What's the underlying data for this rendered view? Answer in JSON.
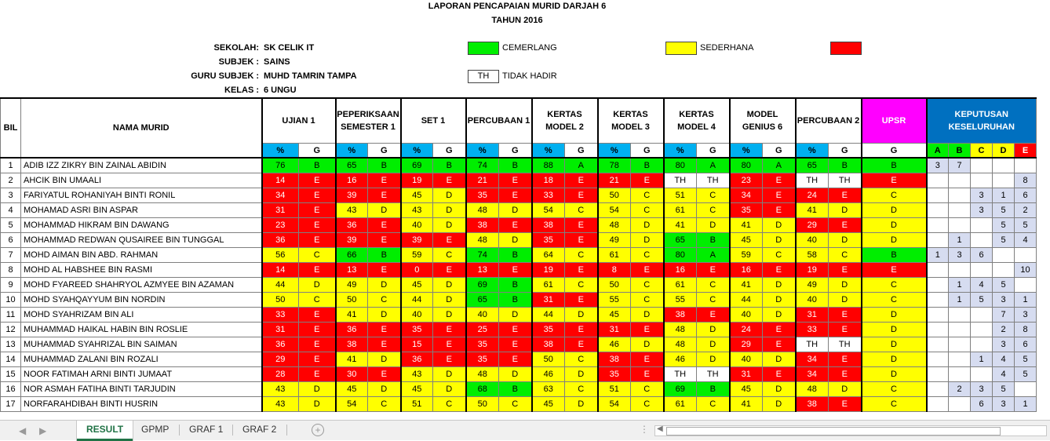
{
  "report": {
    "title": "LAPORAN PENCAPAIAN MURID DARJAH 6",
    "year": "TAHUN 2016",
    "info": [
      {
        "label": "SEKOLAH:",
        "value": "SK CELIK IT"
      },
      {
        "label": "SUBJEK :",
        "value": "SAINS"
      },
      {
        "label": "GURU SUBJEK :",
        "value": "MUHD TAMRIN TAMPA"
      },
      {
        "label": "KELAS :",
        "value": "6 UNGU"
      }
    ],
    "legend": {
      "cemerlang": "CEMERLANG",
      "sederhana": "SEDERHANA",
      "th_code": "TH",
      "th_label": "TIDAK HADIR",
      "colors": {
        "cemerlang": "#00ee00",
        "sederhana": "#ffff00",
        "lemah": "#ff0000"
      }
    }
  },
  "table": {
    "col_bil": "BIL",
    "col_name": "NAMA MURID",
    "exams": [
      "UJIAN 1",
      "PEPERIKSAAN SEMESTER 1",
      "SET 1",
      "PERCUBAAN 1",
      "KERTAS MODEL 2",
      "KERTAS MODEL 3",
      "KERTAS MODEL 4",
      "MODEL GENIUS 6",
      "PERCUBAAN 2"
    ],
    "pct_label": "%",
    "g_label": "G",
    "upsr": "UPSR",
    "keputusan": "KEPUTUSAN KESELURUHAN",
    "grades": [
      "A",
      "B",
      "C",
      "D",
      "E"
    ],
    "rows": [
      {
        "bil": "1",
        "name": "ADIB IZZ ZIKRY BIN ZAINAL ABIDIN",
        "marks": [
          [
            "76",
            "B"
          ],
          [
            "65",
            "B"
          ],
          [
            "69",
            "B"
          ],
          [
            "74",
            "B"
          ],
          [
            "88",
            "A"
          ],
          [
            "78",
            "B"
          ],
          [
            "80",
            "A"
          ],
          [
            "80",
            "A"
          ],
          [
            "65",
            "B"
          ]
        ],
        "upsr": "B",
        "k": [
          "3",
          "7",
          "",
          "",
          ""
        ]
      },
      {
        "bil": "2",
        "name": "AHCIK BIN UMAALI",
        "marks": [
          [
            "14",
            "E"
          ],
          [
            "16",
            "E"
          ],
          [
            "19",
            "E"
          ],
          [
            "21",
            "E"
          ],
          [
            "18",
            "E"
          ],
          [
            "21",
            "E"
          ],
          [
            "TH",
            "TH"
          ],
          [
            "23",
            "E"
          ],
          [
            "TH",
            "TH"
          ]
        ],
        "upsr": "E",
        "k": [
          "",
          "",
          "",
          "",
          "8"
        ]
      },
      {
        "bil": "3",
        "name": "FARIYATUL ROHANIYAH BINTI RONIL",
        "marks": [
          [
            "34",
            "E"
          ],
          [
            "39",
            "E"
          ],
          [
            "45",
            "D"
          ],
          [
            "35",
            "E"
          ],
          [
            "33",
            "E"
          ],
          [
            "50",
            "C"
          ],
          [
            "51",
            "C"
          ],
          [
            "34",
            "E"
          ],
          [
            "24",
            "E"
          ]
        ],
        "upsr": "C",
        "k": [
          "",
          "",
          "3",
          "1",
          "6"
        ]
      },
      {
        "bil": "4",
        "name": "MOHAMAD ASRI BIN ASPAR",
        "marks": [
          [
            "31",
            "E"
          ],
          [
            "43",
            "D"
          ],
          [
            "43",
            "D"
          ],
          [
            "48",
            "D"
          ],
          [
            "54",
            "C"
          ],
          [
            "54",
            "C"
          ],
          [
            "61",
            "C"
          ],
          [
            "35",
            "E"
          ],
          [
            "41",
            "D"
          ]
        ],
        "upsr": "D",
        "k": [
          "",
          "",
          "3",
          "5",
          "2"
        ]
      },
      {
        "bil": "5",
        "name": "MOHAMMAD HIKRAM BIN DAWANG",
        "marks": [
          [
            "23",
            "E"
          ],
          [
            "36",
            "E"
          ],
          [
            "40",
            "D"
          ],
          [
            "38",
            "E"
          ],
          [
            "38",
            "E"
          ],
          [
            "48",
            "D"
          ],
          [
            "41",
            "D"
          ],
          [
            "41",
            "D"
          ],
          [
            "29",
            "E"
          ]
        ],
        "upsr": "D",
        "k": [
          "",
          "",
          "",
          "5",
          "5"
        ]
      },
      {
        "bil": "6",
        "name": "MOHAMMAD REDWAN QUSAIREE BIN TUNGGAL",
        "marks": [
          [
            "36",
            "E"
          ],
          [
            "39",
            "E"
          ],
          [
            "39",
            "E"
          ],
          [
            "48",
            "D"
          ],
          [
            "35",
            "E"
          ],
          [
            "49",
            "D"
          ],
          [
            "65",
            "B"
          ],
          [
            "45",
            "D"
          ],
          [
            "40",
            "D"
          ]
        ],
        "upsr": "D",
        "k": [
          "",
          "1",
          "",
          "5",
          "4"
        ]
      },
      {
        "bil": "7",
        "name": "MOHD AIMAN BIN ABD. RAHMAN",
        "marks": [
          [
            "56",
            "C"
          ],
          [
            "66",
            "B"
          ],
          [
            "59",
            "C"
          ],
          [
            "74",
            "B"
          ],
          [
            "64",
            "C"
          ],
          [
            "61",
            "C"
          ],
          [
            "80",
            "A"
          ],
          [
            "59",
            "C"
          ],
          [
            "58",
            "C"
          ]
        ],
        "upsr": "B",
        "k": [
          "1",
          "3",
          "6",
          "",
          ""
        ]
      },
      {
        "bil": "8",
        "name": "MOHD AL HABSHEE BIN RASMI",
        "marks": [
          [
            "14",
            "E"
          ],
          [
            "13",
            "E"
          ],
          [
            "0",
            "E"
          ],
          [
            "13",
            "E"
          ],
          [
            "19",
            "E"
          ],
          [
            "8",
            "E"
          ],
          [
            "16",
            "E"
          ],
          [
            "16",
            "E"
          ],
          [
            "19",
            "E"
          ]
        ],
        "upsr": "E",
        "k": [
          "",
          "",
          "",
          "",
          "10"
        ]
      },
      {
        "bil": "9",
        "name": "MOHD FYAREED SHAHRYOL AZMYEE BIN AZAMAN",
        "marks": [
          [
            "44",
            "D"
          ],
          [
            "49",
            "D"
          ],
          [
            "45",
            "D"
          ],
          [
            "69",
            "B"
          ],
          [
            "61",
            "C"
          ],
          [
            "50",
            "C"
          ],
          [
            "61",
            "C"
          ],
          [
            "41",
            "D"
          ],
          [
            "49",
            "D"
          ]
        ],
        "upsr": "C",
        "k": [
          "",
          "1",
          "4",
          "5",
          ""
        ]
      },
      {
        "bil": "10",
        "name": "MOHD SYAHQAYYUM BIN NORDIN",
        "marks": [
          [
            "50",
            "C"
          ],
          [
            "50",
            "C"
          ],
          [
            "44",
            "D"
          ],
          [
            "65",
            "B"
          ],
          [
            "31",
            "E"
          ],
          [
            "55",
            "C"
          ],
          [
            "55",
            "C"
          ],
          [
            "44",
            "D"
          ],
          [
            "40",
            "D"
          ]
        ],
        "upsr": "C",
        "k": [
          "",
          "1",
          "5",
          "3",
          "1"
        ]
      },
      {
        "bil": "11",
        "name": "MOHD SYAHRIZAM BIN ALI",
        "marks": [
          [
            "33",
            "E"
          ],
          [
            "41",
            "D"
          ],
          [
            "40",
            "D"
          ],
          [
            "40",
            "D"
          ],
          [
            "44",
            "D"
          ],
          [
            "45",
            "D"
          ],
          [
            "38",
            "E"
          ],
          [
            "40",
            "D"
          ],
          [
            "31",
            "E"
          ]
        ],
        "upsr": "D",
        "k": [
          "",
          "",
          "",
          "7",
          "3"
        ]
      },
      {
        "bil": "12",
        "name": "MUHAMMAD HAIKAL HABIN BIN ROSLIE",
        "marks": [
          [
            "31",
            "E"
          ],
          [
            "36",
            "E"
          ],
          [
            "35",
            "E"
          ],
          [
            "25",
            "E"
          ],
          [
            "35",
            "E"
          ],
          [
            "31",
            "E"
          ],
          [
            "48",
            "D"
          ],
          [
            "24",
            "E"
          ],
          [
            "33",
            "E"
          ]
        ],
        "upsr": "D",
        "k": [
          "",
          "",
          "",
          "2",
          "8"
        ]
      },
      {
        "bil": "13",
        "name": "MUHAMMAD SYAHRIZAL BIN SAIMAN",
        "marks": [
          [
            "36",
            "E"
          ],
          [
            "38",
            "E"
          ],
          [
            "15",
            "E"
          ],
          [
            "35",
            "E"
          ],
          [
            "38",
            "E"
          ],
          [
            "46",
            "D"
          ],
          [
            "48",
            "D"
          ],
          [
            "29",
            "E"
          ],
          [
            "TH",
            "TH"
          ]
        ],
        "upsr": "D",
        "k": [
          "",
          "",
          "",
          "3",
          "6"
        ]
      },
      {
        "bil": "14",
        "name": "MUHAMMAD ZALANI BIN ROZALI",
        "marks": [
          [
            "29",
            "E"
          ],
          [
            "41",
            "D"
          ],
          [
            "36",
            "E"
          ],
          [
            "35",
            "E"
          ],
          [
            "50",
            "C"
          ],
          [
            "38",
            "E"
          ],
          [
            "46",
            "D"
          ],
          [
            "40",
            "D"
          ],
          [
            "34",
            "E"
          ]
        ],
        "upsr": "D",
        "k": [
          "",
          "",
          "1",
          "4",
          "5"
        ]
      },
      {
        "bil": "15",
        "name": "NOOR FATIMAH ARNI BINTI JUMAAT",
        "marks": [
          [
            "28",
            "E"
          ],
          [
            "30",
            "E"
          ],
          [
            "43",
            "D"
          ],
          [
            "48",
            "D"
          ],
          [
            "46",
            "D"
          ],
          [
            "35",
            "E"
          ],
          [
            "TH",
            "TH"
          ],
          [
            "31",
            "E"
          ],
          [
            "34",
            "E"
          ]
        ],
        "upsr": "D",
        "k": [
          "",
          "",
          "",
          "4",
          "5"
        ]
      },
      {
        "bil": "16",
        "name": "NOR ASMAH FATIHA BINTI TARJUDIN",
        "marks": [
          [
            "43",
            "D"
          ],
          [
            "45",
            "D"
          ],
          [
            "45",
            "D"
          ],
          [
            "68",
            "B"
          ],
          [
            "63",
            "C"
          ],
          [
            "51",
            "C"
          ],
          [
            "69",
            "B"
          ],
          [
            "45",
            "D"
          ],
          [
            "48",
            "D"
          ]
        ],
        "upsr": "C",
        "k": [
          "",
          "2",
          "3",
          "5",
          ""
        ]
      },
      {
        "bil": "17",
        "name": "NORFARAHDIBAH BINTI HUSRIN",
        "marks": [
          [
            "43",
            "D"
          ],
          [
            "54",
            "C"
          ],
          [
            "51",
            "C"
          ],
          [
            "50",
            "C"
          ],
          [
            "45",
            "D"
          ],
          [
            "54",
            "C"
          ],
          [
            "61",
            "C"
          ],
          [
            "41",
            "D"
          ],
          [
            "38",
            "E"
          ]
        ],
        "upsr": "C",
        "k": [
          "",
          "",
          "6",
          "3",
          "1"
        ]
      }
    ]
  },
  "tabs": [
    "RESULT",
    "GPMP",
    "GRAF 1",
    "GRAF 2"
  ],
  "active_tab": "RESULT"
}
